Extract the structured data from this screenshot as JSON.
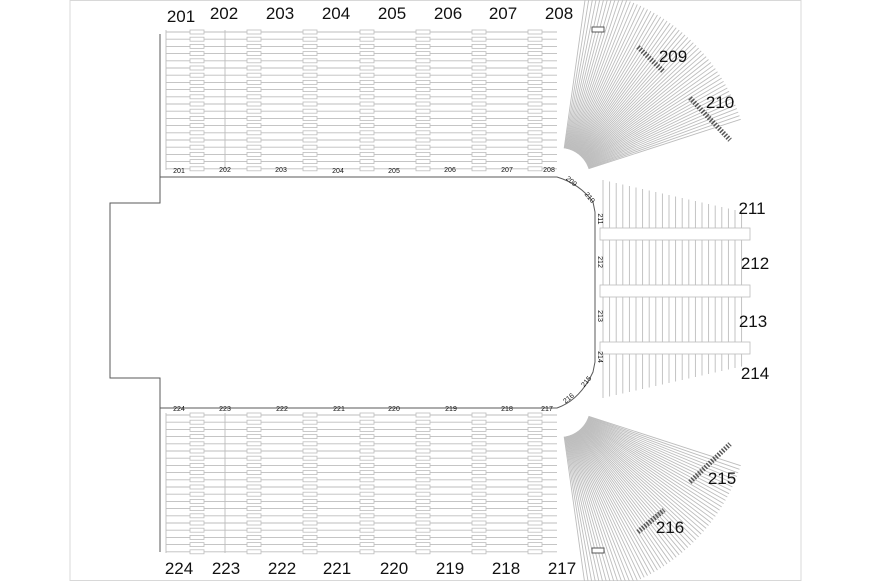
{
  "seating_map": {
    "sections": [
      {
        "id": "201",
        "group": "top"
      },
      {
        "id": "202",
        "group": "top"
      },
      {
        "id": "203",
        "group": "top"
      },
      {
        "id": "204",
        "group": "top"
      },
      {
        "id": "205",
        "group": "top"
      },
      {
        "id": "206",
        "group": "top"
      },
      {
        "id": "207",
        "group": "top"
      },
      {
        "id": "208",
        "group": "top"
      },
      {
        "id": "209",
        "group": "curve-top"
      },
      {
        "id": "210",
        "group": "curve-top"
      },
      {
        "id": "211",
        "group": "end"
      },
      {
        "id": "212",
        "group": "end"
      },
      {
        "id": "213",
        "group": "end"
      },
      {
        "id": "214",
        "group": "end"
      },
      {
        "id": "215",
        "group": "curve-bottom"
      },
      {
        "id": "216",
        "group": "curve-bottom"
      },
      {
        "id": "217",
        "group": "bottom"
      },
      {
        "id": "218",
        "group": "bottom"
      },
      {
        "id": "219",
        "group": "bottom"
      },
      {
        "id": "220",
        "group": "bottom"
      },
      {
        "id": "221",
        "group": "bottom"
      },
      {
        "id": "222",
        "group": "bottom"
      },
      {
        "id": "223",
        "group": "bottom"
      },
      {
        "id": "224",
        "group": "bottom"
      }
    ],
    "colors": {
      "row_line": "#bdbdbd",
      "floor_outline": "#5a5a5a",
      "label": "#111111",
      "frame": "#d8d8d8"
    }
  }
}
